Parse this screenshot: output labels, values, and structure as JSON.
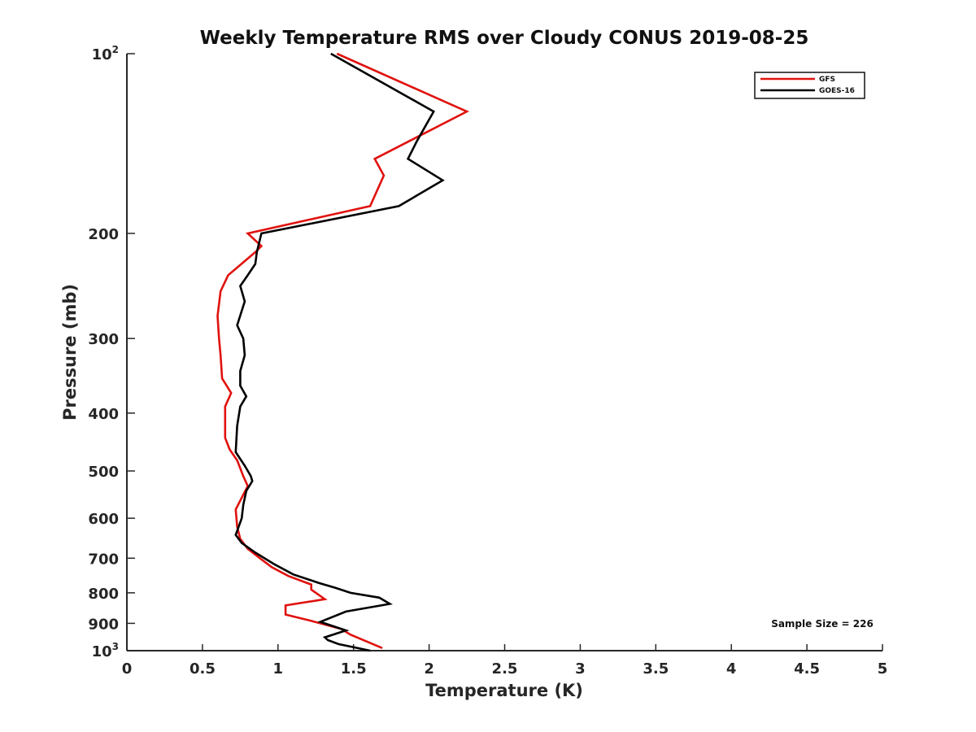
{
  "chart_data": {
    "type": "line",
    "title": "Weekly Temperature RMS over Cloudy CONUS 2019-08-25",
    "xlabel": "Temperature (K)",
    "ylabel": "Pressure (mb)",
    "xlim": [
      0,
      5
    ],
    "ylim": [
      1000,
      100
    ],
    "y_scale": "log",
    "y_reversed": true,
    "grid": false,
    "legend_position": "top-right",
    "x_ticks": [
      "0",
      "0.5",
      "1",
      "1.5",
      "2",
      "2.5",
      "3",
      "3.5",
      "4",
      "4.5",
      "5"
    ],
    "x_tick_values": [
      0,
      0.5,
      1,
      1.5,
      2,
      2.5,
      3,
      3.5,
      4,
      4.5,
      5
    ],
    "y_ticks": [
      {
        "value": 100,
        "base": "10",
        "sup": "2"
      },
      {
        "value": 200,
        "label": "200"
      },
      {
        "value": 300,
        "label": "300"
      },
      {
        "value": 400,
        "label": "400"
      },
      {
        "value": 500,
        "label": "500"
      },
      {
        "value": 600,
        "label": "600"
      },
      {
        "value": 700,
        "label": "700"
      },
      {
        "value": 800,
        "label": "800"
      },
      {
        "value": 900,
        "label": "900"
      },
      {
        "value": 1000,
        "base": "10",
        "sup": "3"
      }
    ],
    "series": [
      {
        "name": "GFS",
        "color": "#e0120e",
        "points": [
          [
            1.39,
            100
          ],
          [
            2.25,
            125
          ],
          [
            1.64,
            150
          ],
          [
            1.7,
            160
          ],
          [
            1.61,
            180
          ],
          [
            0.8,
            200
          ],
          [
            0.89,
            210
          ],
          [
            0.85,
            215
          ],
          [
            0.67,
            235
          ],
          [
            0.62,
            250
          ],
          [
            0.6,
            275
          ],
          [
            0.61,
            300
          ],
          [
            0.62,
            320
          ],
          [
            0.63,
            350
          ],
          [
            0.69,
            370
          ],
          [
            0.65,
            390
          ],
          [
            0.65,
            410
          ],
          [
            0.65,
            440
          ],
          [
            0.68,
            460
          ],
          [
            0.73,
            480
          ],
          [
            0.77,
            510
          ],
          [
            0.8,
            530
          ],
          [
            0.72,
            580
          ],
          [
            0.73,
            620
          ],
          [
            0.75,
            650
          ],
          [
            0.8,
            675
          ],
          [
            0.88,
            700
          ],
          [
            0.96,
            725
          ],
          [
            1.07,
            750
          ],
          [
            1.22,
            775
          ],
          [
            1.22,
            790
          ],
          [
            1.31,
            820
          ],
          [
            1.05,
            840
          ],
          [
            1.05,
            870
          ],
          [
            1.21,
            890
          ],
          [
            1.42,
            920
          ],
          [
            1.48,
            940
          ],
          [
            1.69,
            990
          ]
        ]
      },
      {
        "name": "GOES-16",
        "color": "#000000",
        "points": [
          [
            1.35,
            100
          ],
          [
            2.03,
            125
          ],
          [
            1.92,
            140
          ],
          [
            1.86,
            150
          ],
          [
            2.09,
            163
          ],
          [
            1.8,
            180
          ],
          [
            0.89,
            200
          ],
          [
            0.86,
            215
          ],
          [
            0.85,
            225
          ],
          [
            0.8,
            235
          ],
          [
            0.75,
            245
          ],
          [
            0.78,
            260
          ],
          [
            0.73,
            285
          ],
          [
            0.77,
            300
          ],
          [
            0.78,
            320
          ],
          [
            0.75,
            340
          ],
          [
            0.75,
            360
          ],
          [
            0.79,
            375
          ],
          [
            0.75,
            390
          ],
          [
            0.73,
            420
          ],
          [
            0.72,
            465
          ],
          [
            0.78,
            490
          ],
          [
            0.82,
            510
          ],
          [
            0.83,
            520
          ],
          [
            0.79,
            540
          ],
          [
            0.77,
            570
          ],
          [
            0.76,
            600
          ],
          [
            0.72,
            640
          ],
          [
            0.76,
            660
          ],
          [
            0.85,
            685
          ],
          [
            0.97,
            715
          ],
          [
            1.1,
            745
          ],
          [
            1.27,
            770
          ],
          [
            1.38,
            785
          ],
          [
            1.48,
            800
          ],
          [
            1.67,
            815
          ],
          [
            1.74,
            835
          ],
          [
            1.45,
            860
          ],
          [
            1.28,
            895
          ],
          [
            1.45,
            925
          ],
          [
            1.31,
            950
          ],
          [
            1.33,
            960
          ],
          [
            1.4,
            975
          ],
          [
            1.61,
            1000
          ]
        ]
      }
    ],
    "annotations": [
      "Sample Size = 226"
    ]
  }
}
